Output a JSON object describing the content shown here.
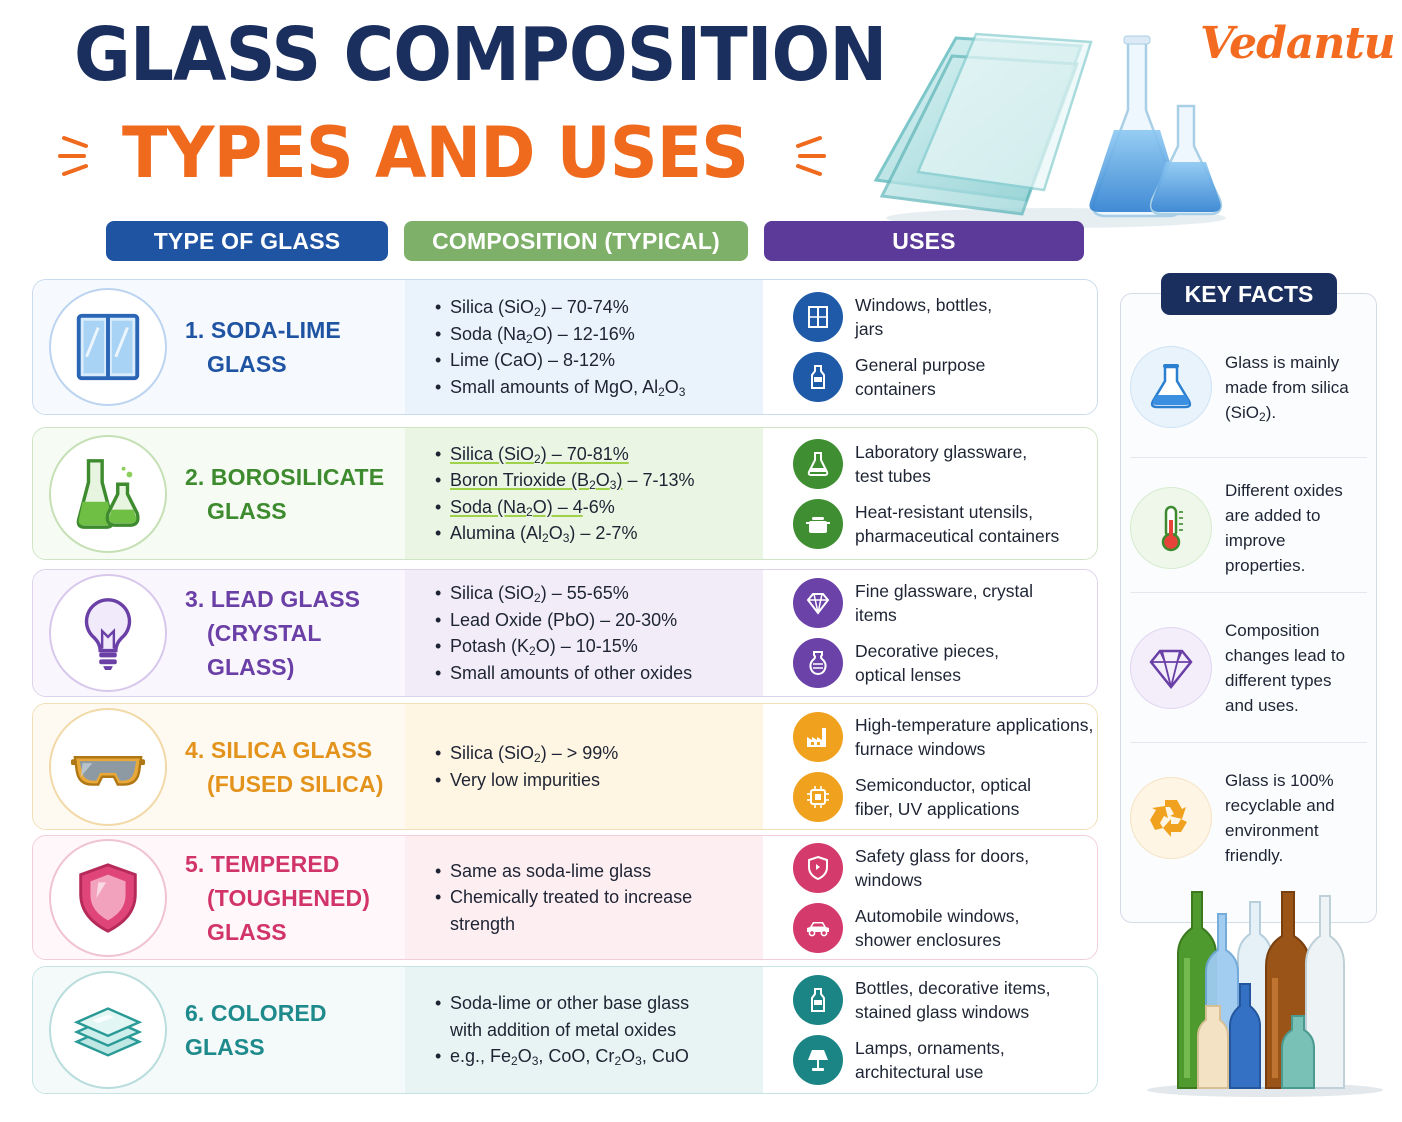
{
  "title": {
    "line1": "GLASS COMPOSITION",
    "line2": "TYPES AND USES"
  },
  "brand": "Vedantu",
  "columns": {
    "type": "TYPE OF GLASS",
    "composition": "COMPOSITION (TYPICAL)",
    "uses": "USES"
  },
  "rows": [
    {
      "name_line1": "1. SODA-LIME",
      "name_line2": "GLASS",
      "icon": "window-icon",
      "composition": [
        "Silica (SiO₂) – 70-74%",
        "Soda (Na₂O) – 12-16%",
        "Lime (CaO) – 8-12%",
        "Small amounts of MgO, Al₂O₃"
      ],
      "uses": [
        {
          "icon": "window-icon",
          "text": "Windows, bottles,\njars"
        },
        {
          "icon": "bottle-icon",
          "text": "General purpose\ncontainers"
        }
      ]
    },
    {
      "name_line1": "2. BOROSILICATE",
      "name_line2": "GLASS",
      "icon": "lab-flasks-icon",
      "composition": [
        "Silica (SiO₂) – 70-81%",
        "Boron Trioxide (B₂O₃) – 7-13%",
        "Soda (Na₂O) – 4-6%",
        "Alumina (Al₂O₃) – 2-7%"
      ],
      "uses": [
        {
          "icon": "flask-icon",
          "text": "Laboratory glassware,\ntest tubes"
        },
        {
          "icon": "pot-icon",
          "text": "Heat-resistant utensils,\npharmaceutical containers"
        }
      ]
    },
    {
      "name_line1": "3. LEAD GLASS",
      "name_line2": "(CRYSTAL GLASS)",
      "icon": "light-bulb-icon",
      "composition": [
        "Silica (SiO₂) – 55-65%",
        "Lead Oxide (PbO) – 20-30%",
        "Potash (K₂O) – 10-15%",
        "Small amounts of other oxides"
      ],
      "uses": [
        {
          "icon": "diamond-icon",
          "text": "Fine glassware, crystal\nitems"
        },
        {
          "icon": "vase-icon",
          "text": "Decorative pieces,\noptical lenses"
        }
      ]
    },
    {
      "name_line1": "4. SILICA GLASS",
      "name_line2": "(FUSED SILICA)",
      "icon": "safety-goggles-icon",
      "composition": [
        "Silica (SiO₂) – > 99%",
        "Very low impurities"
      ],
      "uses": [
        {
          "icon": "factory-icon",
          "text": "High-temperature applications,\nfurnace windows"
        },
        {
          "icon": "chip-icon",
          "text": "Semiconductor, optical\nfiber, UV applications"
        }
      ]
    },
    {
      "name_line1": "5. TEMPERED",
      "name_line2": "(TOUGHENED) GLASS",
      "icon": "shield-icon",
      "composition": [
        "Same as soda-lime glass",
        "Chemically treated to increase strength"
      ],
      "uses": [
        {
          "icon": "shield-icon",
          "text": "Safety glass for doors,\nwindows"
        },
        {
          "icon": "car-icon",
          "text": "Automobile windows,\nshower enclosures"
        }
      ]
    },
    {
      "name_line1": "6. COLORED GLASS",
      "name_line2": "",
      "icon": "glass-layers-icon",
      "composition": [
        "Soda-lime or other base glass with addition of metal oxides",
        "e.g., Fe₂O₃, CoO, Cr₂O₃, CuO"
      ],
      "uses": [
        {
          "icon": "bottle-icon",
          "text": "Bottles, decorative items,\nstained glass windows"
        },
        {
          "icon": "lamp-icon",
          "text": "Lamps, ornaments,\narchitectural use"
        }
      ]
    }
  ],
  "key_facts": {
    "title": "KEY FACTS",
    "items": [
      {
        "icon": "flask-icon",
        "text": "Glass is mainly made from silica (SiO₂)."
      },
      {
        "icon": "thermometer-icon",
        "text": "Different oxides are added to improve properties."
      },
      {
        "icon": "diamond-icon",
        "text": "Composition changes lead to different types and uses."
      },
      {
        "icon": "recycle-icon",
        "text": "Glass is 100% recyclable and environment friendly."
      }
    ]
  },
  "colors": {
    "navy": "#1b2f5e",
    "orange": "#f06a1d",
    "blue": "#1f54a3",
    "green": "#7fb069",
    "purple": "#5c3a99",
    "amber": "#f0a21f",
    "pink": "#d43a6b",
    "teal": "#1b8586"
  }
}
